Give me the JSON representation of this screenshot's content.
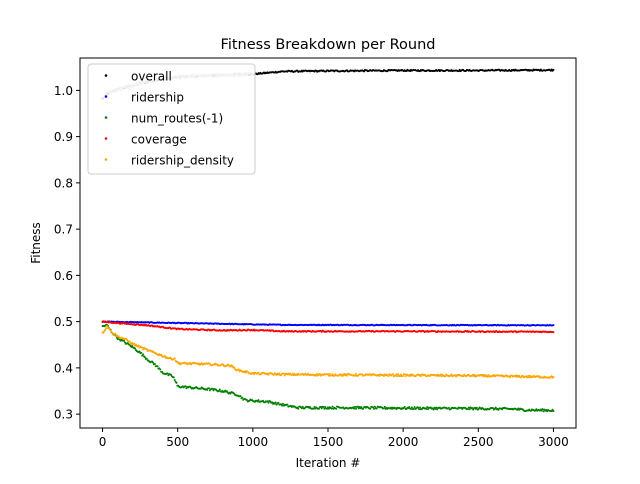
{
  "chart_data": {
    "type": "scatter",
    "title": "Fitness Breakdown per Round",
    "xlabel": "Iteration #",
    "ylabel": "Fitness",
    "xlim": [
      -150,
      3150
    ],
    "ylim": [
      0.27,
      1.07
    ],
    "xticks": [
      0,
      500,
      1000,
      1500,
      2000,
      2500,
      3000
    ],
    "xtick_labels": [
      "0",
      "500",
      "1000",
      "1500",
      "2000",
      "2500",
      "3000"
    ],
    "yticks": [
      0.3,
      0.4,
      0.5,
      0.6,
      0.7,
      0.8,
      0.9,
      1.0
    ],
    "ytick_labels": [
      "0.3",
      "0.4",
      "0.5",
      "0.6",
      "0.7",
      "0.8",
      "0.9",
      "1.0"
    ],
    "grid": false,
    "legend": "upper-left",
    "series": [
      {
        "name": "overall",
        "color": "#000000",
        "anchors": [
          [
            0,
            0.982
          ],
          [
            30,
            0.993
          ],
          [
            80,
            1.0
          ],
          [
            150,
            1.006
          ],
          [
            250,
            1.015
          ],
          [
            350,
            1.022
          ],
          [
            450,
            1.027
          ],
          [
            550,
            1.03
          ],
          [
            700,
            1.032
          ],
          [
            900,
            1.034
          ],
          [
            1000,
            1.035
          ],
          [
            1100,
            1.038
          ],
          [
            1200,
            1.041
          ],
          [
            1500,
            1.042
          ],
          [
            2000,
            1.043
          ],
          [
            2500,
            1.043
          ],
          [
            3000,
            1.044
          ]
        ],
        "noise": 0.0015
      },
      {
        "name": "ridership",
        "color": "#0000ff",
        "anchors": [
          [
            0,
            0.5
          ],
          [
            500,
            0.497
          ],
          [
            1000,
            0.494
          ],
          [
            1200,
            0.493
          ],
          [
            3000,
            0.492
          ]
        ],
        "noise": 0.0008
      },
      {
        "name": "num_routes(-1)",
        "color": "#008000",
        "anchors": [
          [
            0,
            0.49
          ],
          [
            30,
            0.492
          ],
          [
            60,
            0.478
          ],
          [
            100,
            0.465
          ],
          [
            150,
            0.455
          ],
          [
            200,
            0.445
          ],
          [
            250,
            0.433
          ],
          [
            300,
            0.418
          ],
          [
            350,
            0.407
          ],
          [
            400,
            0.39
          ],
          [
            470,
            0.381
          ],
          [
            500,
            0.36
          ],
          [
            600,
            0.357
          ],
          [
            700,
            0.354
          ],
          [
            800,
            0.35
          ],
          [
            900,
            0.342
          ],
          [
            950,
            0.33
          ],
          [
            1100,
            0.327
          ],
          [
            1200,
            0.32
          ],
          [
            1300,
            0.314
          ],
          [
            1600,
            0.314
          ],
          [
            2000,
            0.313
          ],
          [
            2500,
            0.312
          ],
          [
            2750,
            0.311
          ],
          [
            2800,
            0.309
          ],
          [
            3000,
            0.308
          ]
        ],
        "noise": 0.0025
      },
      {
        "name": "coverage",
        "color": "#ff0000",
        "anchors": [
          [
            0,
            0.5
          ],
          [
            100,
            0.497
          ],
          [
            300,
            0.492
          ],
          [
            500,
            0.484
          ],
          [
            800,
            0.481
          ],
          [
            1000,
            0.482
          ],
          [
            1200,
            0.479
          ],
          [
            2000,
            0.479
          ],
          [
            3000,
            0.478
          ]
        ],
        "noise": 0.0012
      },
      {
        "name": "ridership_density",
        "color": "#ffa500",
        "anchors": [
          [
            0,
            0.475
          ],
          [
            30,
            0.49
          ],
          [
            60,
            0.478
          ],
          [
            100,
            0.468
          ],
          [
            150,
            0.462
          ],
          [
            200,
            0.452
          ],
          [
            250,
            0.445
          ],
          [
            300,
            0.438
          ],
          [
            400,
            0.426
          ],
          [
            450,
            0.42
          ],
          [
            480,
            0.42
          ],
          [
            500,
            0.41
          ],
          [
            700,
            0.408
          ],
          [
            850,
            0.405
          ],
          [
            900,
            0.395
          ],
          [
            1000,
            0.388
          ],
          [
            1200,
            0.386
          ],
          [
            1500,
            0.385
          ],
          [
            2000,
            0.384
          ],
          [
            2500,
            0.383
          ],
          [
            3000,
            0.38
          ]
        ],
        "noise": 0.0022
      }
    ]
  }
}
